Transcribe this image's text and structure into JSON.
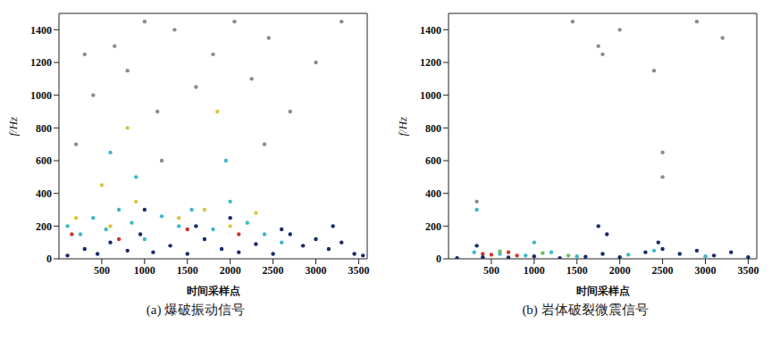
{
  "chart_data": [
    {
      "type": "scatter",
      "title": "(a) 爆破振动信号",
      "x_label": "时间采样点",
      "y_label": "f/Hz",
      "xlim": [
        0,
        3600
      ],
      "ylim": [
        0,
        1500
      ],
      "xticks": [
        500,
        1000,
        1500,
        2000,
        2500,
        3000,
        3500
      ],
      "yticks": [
        0,
        200,
        400,
        600,
        800,
        1000,
        1200,
        1400
      ],
      "grid": false,
      "series": [
        {
          "color": "#8a8a9a",
          "x": [
            200,
            400,
            650,
            800,
            1000,
            1150,
            1350,
            1600,
            1800,
            2050,
            2250,
            2450,
            2700,
            3000,
            3300,
            1200,
            2400,
            300
          ],
          "y": [
            700,
            1000,
            1300,
            1150,
            1450,
            900,
            1400,
            1050,
            1250,
            1450,
            1100,
            1350,
            900,
            1200,
            1450,
            600,
            700,
            1250
          ]
        },
        {
          "color": "#3fb7c9",
          "x": [
            100,
            250,
            400,
            550,
            700,
            850,
            1000,
            1200,
            1400,
            1550,
            1800,
            2000,
            2200,
            2400,
            2600,
            900,
            1950,
            600
          ],
          "y": [
            200,
            150,
            250,
            180,
            300,
            220,
            120,
            260,
            200,
            300,
            180,
            350,
            220,
            150,
            100,
            500,
            600,
            650
          ]
        },
        {
          "color": "#d9c640",
          "x": [
            200,
            600,
            900,
            1400,
            1700,
            2000,
            2300,
            800,
            1850,
            500
          ],
          "y": [
            250,
            200,
            350,
            250,
            300,
            200,
            280,
            800,
            900,
            450
          ]
        },
        {
          "color": "#c83a2a",
          "x": [
            150,
            700,
            1500,
            2100
          ],
          "y": [
            150,
            120,
            180,
            150
          ]
        },
        {
          "color": "#1a2a6c",
          "x": [
            100,
            300,
            450,
            600,
            800,
            950,
            1100,
            1300,
            1500,
            1700,
            1900,
            2100,
            2300,
            2500,
            2700,
            2850,
            3000,
            3150,
            3300,
            3450,
            3550,
            1000,
            2000,
            1600,
            2600,
            3200
          ],
          "y": [
            20,
            60,
            30,
            100,
            50,
            150,
            40,
            80,
            30,
            120,
            60,
            40,
            90,
            30,
            150,
            80,
            120,
            60,
            100,
            30,
            20,
            300,
            250,
            200,
            180,
            200
          ]
        }
      ]
    },
    {
      "type": "scatter",
      "title": "(b) 岩体破裂微震信号",
      "x_label": "时间采样点",
      "y_label": "f/Hz",
      "xlim": [
        0,
        3600
      ],
      "ylim": [
        0,
        1500
      ],
      "xticks": [
        500,
        1000,
        1500,
        2000,
        2500,
        3000,
        3500
      ],
      "yticks": [
        0,
        200,
        400,
        600,
        800,
        1000,
        1200,
        1400
      ],
      "grid": false,
      "series": [
        {
          "color": "#8a8a9a",
          "x": [
            330,
            1750,
            2500,
            2500,
            2000,
            2900,
            3200,
            1450,
            2400,
            1800
          ],
          "y": [
            350,
            1300,
            650,
            500,
            1400,
            1450,
            1350,
            1450,
            1150,
            1250
          ]
        },
        {
          "color": "#3fb7c9",
          "x": [
            300,
            330,
            600,
            900,
            1200,
            1500,
            2100,
            2400,
            3000,
            1000
          ],
          "y": [
            40,
            300,
            30,
            20,
            40,
            15,
            25,
            50,
            15,
            100
          ]
        },
        {
          "color": "#6bbf59",
          "x": [
            600,
            1100,
            1400
          ],
          "y": [
            45,
            35,
            20
          ]
        },
        {
          "color": "#c83a2a",
          "x": [
            400,
            500,
            700,
            800
          ],
          "y": [
            30,
            25,
            40,
            20
          ]
        },
        {
          "color": "#1a2a6c",
          "x": [
            100,
            400,
            700,
            1000,
            1300,
            1600,
            1800,
            2000,
            2300,
            2500,
            2700,
            2900,
            3100,
            3300,
            3500,
            330,
            1750,
            1850,
            2450
          ],
          "y": [
            5,
            10,
            8,
            15,
            5,
            12,
            30,
            10,
            40,
            60,
            30,
            50,
            20,
            40,
            10,
            80,
            200,
            150,
            100
          ]
        }
      ]
    }
  ]
}
